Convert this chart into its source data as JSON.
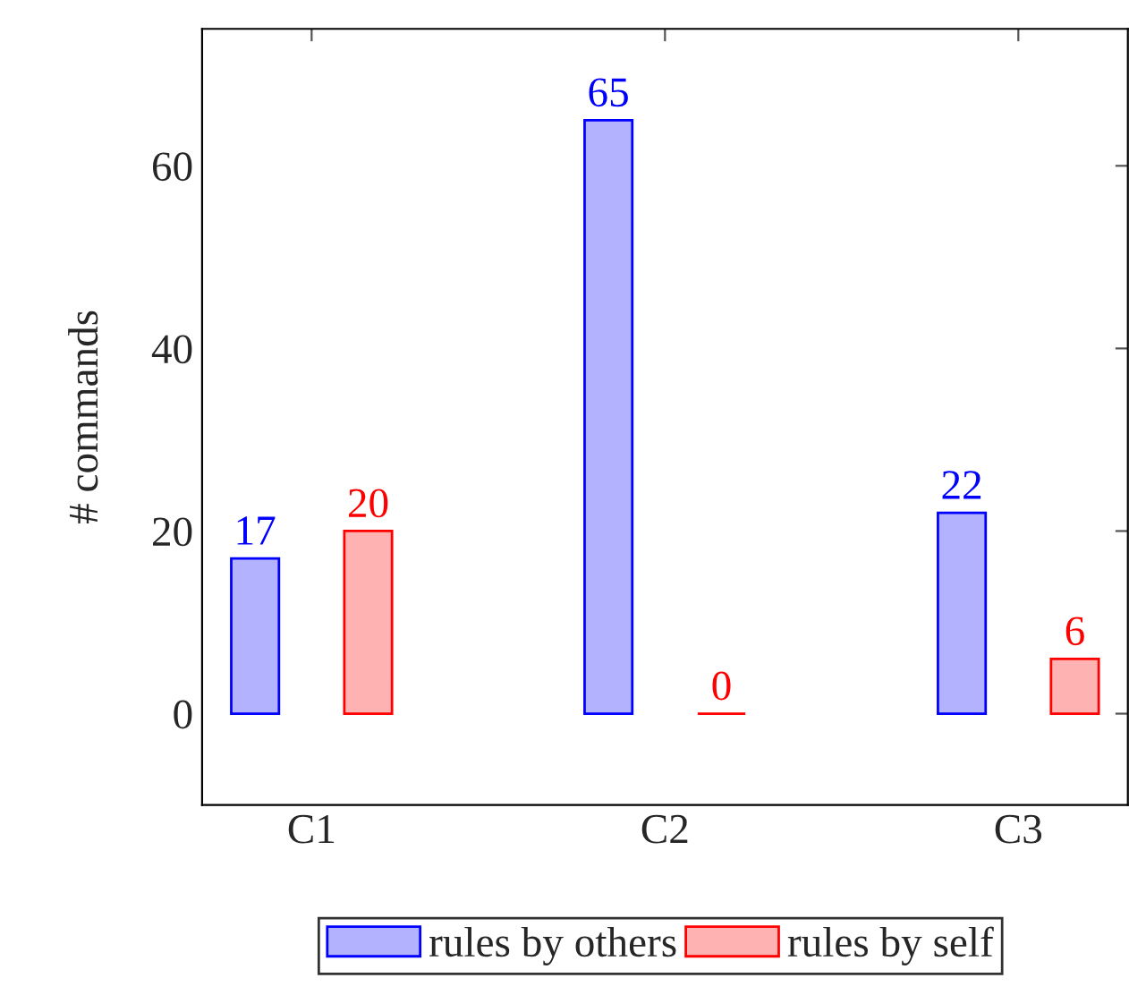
{
  "chart_data": {
    "type": "bar",
    "ylabel": "# commands",
    "categories": [
      "C1",
      "C2",
      "C3"
    ],
    "series": [
      {
        "name": "rules by others",
        "color": "#0000ff",
        "values": [
          17,
          65,
          22
        ]
      },
      {
        "name": "rules by self",
        "color": "#ff0000",
        "values": [
          20,
          0,
          6
        ]
      }
    ],
    "ylim": [
      -10,
      75
    ],
    "yticks": [
      0,
      20,
      40,
      60
    ],
    "data_labels": true,
    "grid": false,
    "legend": "bottom"
  }
}
